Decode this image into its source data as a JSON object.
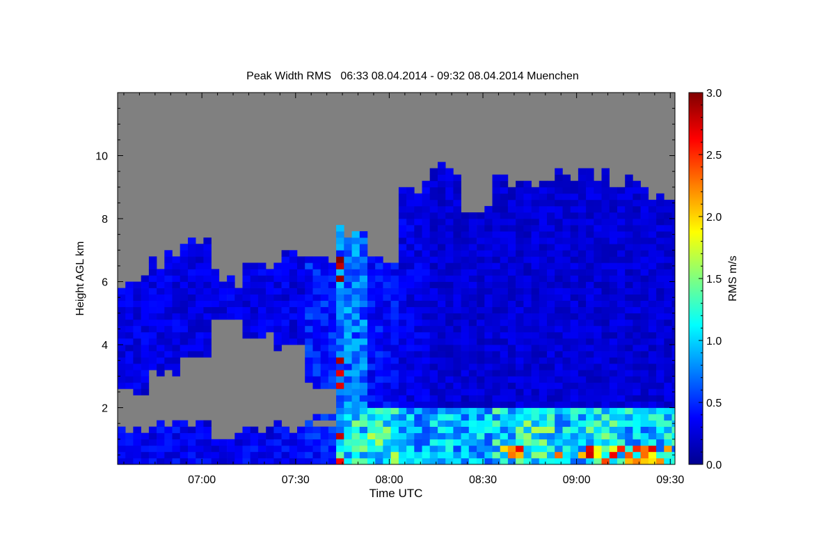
{
  "chart_data": {
    "type": "heatmap",
    "title": "Peak Width RMS   06:33 08.04.2014 - 09:32 08.04.2014 Muenchen",
    "xlabel": "Time UTC",
    "ylabel": "Height AGL km",
    "xlim": [
      "06:33",
      "09:31"
    ],
    "ylim": [
      0.2,
      12.0
    ],
    "xticks": [
      "07:00",
      "07:30",
      "08:00",
      "08:30",
      "09:00",
      "09:30"
    ],
    "yticks": [
      "2",
      "4",
      "6",
      "8",
      "10"
    ],
    "colorbar": {
      "label": "RMS m/s",
      "range": [
        0.0,
        3.0
      ],
      "colormap": "jet",
      "ticks": [
        "0.0",
        "0.5",
        "1.0",
        "1.5",
        "2.0",
        "2.5",
        "3.0"
      ]
    },
    "no_data_color": "#808080",
    "columns": [
      {
        "t": "06:33",
        "top": 6.0,
        "gap": [
          1.3,
          2.4
        ],
        "low_top": 1.3,
        "low_rms": 0.35,
        "up_rms": 0.3
      },
      {
        "t": "06:43",
        "top": 6.6,
        "gap": [
          1.4,
          3.0
        ],
        "low_top": 1.4,
        "low_rms": 0.35,
        "up_rms": 0.3
      },
      {
        "t": "06:53",
        "top": 7.0,
        "gap": [
          1.4,
          3.6
        ],
        "low_top": 1.4,
        "low_rms": 0.35,
        "up_rms": 0.3
      },
      {
        "t": "07:03",
        "top": 6.0,
        "gap": [
          1.0,
          4.6
        ],
        "low_top": 1.0,
        "low_rms": 0.3,
        "up_rms": 0.3
      },
      {
        "t": "07:13",
        "top": 6.6,
        "gap": [
          1.2,
          4.2
        ],
        "low_top": 1.2,
        "low_rms": 0.35,
        "up_rms": 0.3
      },
      {
        "t": "07:23",
        "top": 6.6,
        "gap": [
          1.3,
          3.8
        ],
        "low_top": 1.3,
        "low_rms": 0.35,
        "up_rms": 0.3
      },
      {
        "t": "07:33",
        "top": 6.8,
        "gap": [
          1.5,
          2.6
        ],
        "low_top": 1.5,
        "low_rms": 0.45,
        "up_rms": 0.45
      },
      {
        "t": "07:43",
        "top": 7.5,
        "gap": null,
        "low_top": 1.8,
        "low_rms": 1.1,
        "up_rms": 0.7
      },
      {
        "t": "07:53",
        "top": 6.8,
        "gap": null,
        "low_top": 1.8,
        "low_rms": 1.2,
        "up_rms": 0.4
      },
      {
        "t": "08:03",
        "top": 9.0,
        "gap": null,
        "low_top": 1.8,
        "low_rms": 0.9,
        "up_rms": 0.3
      },
      {
        "t": "08:13",
        "top": 9.4,
        "gap": null,
        "low_top": 1.8,
        "low_rms": 0.9,
        "up_rms": 0.25
      },
      {
        "t": "08:23",
        "top": 8.0,
        "gap": null,
        "low_top": 1.8,
        "low_rms": 0.9,
        "up_rms": 0.25
      },
      {
        "t": "08:33",
        "top": 9.0,
        "gap": null,
        "low_top": 1.8,
        "low_rms": 1.1,
        "up_rms": 0.25
      },
      {
        "t": "08:43",
        "top": 8.8,
        "gap": null,
        "low_top": 1.8,
        "low_rms": 1.2,
        "up_rms": 0.25
      },
      {
        "t": "08:53",
        "top": 9.3,
        "gap": null,
        "low_top": 1.8,
        "low_rms": 1.0,
        "up_rms": 0.25
      },
      {
        "t": "09:03",
        "top": 9.3,
        "gap": null,
        "low_top": 1.8,
        "low_rms": 1.1,
        "up_rms": 0.25
      },
      {
        "t": "09:13",
        "top": 9.1,
        "gap": null,
        "low_top": 1.8,
        "low_rms": 1.0,
        "up_rms": 0.25
      },
      {
        "t": "09:23",
        "top": 8.6,
        "gap": null,
        "low_top": 1.8,
        "low_rms": 1.0,
        "up_rms": 0.25
      }
    ]
  }
}
